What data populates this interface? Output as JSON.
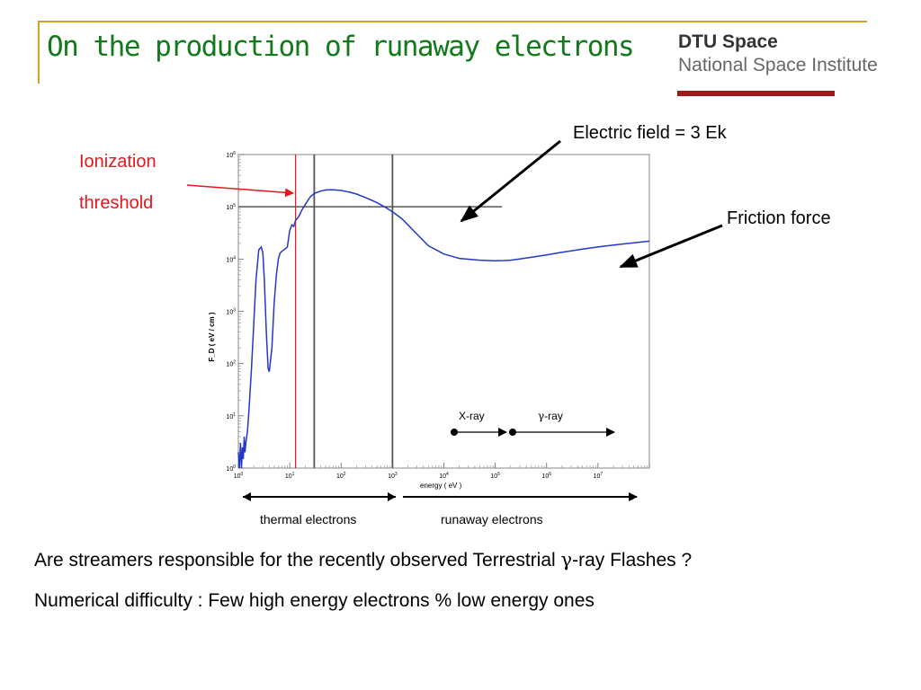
{
  "slide": {
    "title": "On the production of runaway electrons",
    "logo": {
      "line1": "DTU Space",
      "line2": "National Space Institute"
    },
    "annotations": {
      "ionization_line1": "Ionization",
      "ionization_line2": "threshold",
      "electric_field": "Electric field = 3 Ek",
      "friction_force": "Friction force",
      "xray": "X-ray",
      "gamma_symbol": "γ",
      "gamma_suffix": "-ray",
      "thermal": "thermal electrons",
      "runaway": "runaway electrons"
    },
    "question_prefix": "Are streamers responsible for the recently observed Terrestrial ",
    "question_symbol": "γ",
    "question_suffix": "-ray Flashes ?",
    "note": "Numerical difficulty : Few high energy electrons % low energy ones"
  },
  "colors": {
    "title": "#137a1b",
    "curve": "#2438c8",
    "ionization": "#e8161c",
    "logo_bar": "#9e1a1a",
    "frame_line": "#cfa22b"
  },
  "chart_data": {
    "type": "line",
    "xlabel": "energy ( eV )",
    "ylabel": "F_D ( eV / cm )",
    "xscale": "log",
    "yscale": "log",
    "xlim": [
      1,
      100000000
    ],
    "ylim": [
      1,
      1000000
    ],
    "x_tick_labels": [
      "10^0",
      "10^1",
      "10^2",
      "10^3",
      "10^4",
      "10^5",
      "10^6",
      "10^7"
    ],
    "y_tick_labels": [
      "10^0",
      "10^1",
      "10^2",
      "10^3",
      "10^4",
      "10^5",
      "10^6"
    ],
    "series": [
      {
        "x": [
          1,
          1.05,
          1.1,
          1.15,
          1.2,
          1.25,
          1.3,
          1.35,
          1.4,
          1.5,
          1.6,
          1.8,
          2.0,
          2.2,
          2.5,
          2.8,
          3.0,
          3.2,
          3.5,
          3.8,
          4.0,
          4.5,
          5.0,
          5.5,
          6.0,
          6.5,
          7.0,
          8.0,
          9.0,
          10,
          11,
          12,
          13,
          15,
          17,
          20,
          25,
          30,
          40,
          50,
          70,
          100,
          150,
          200,
          300,
          500,
          700,
          1000,
          1500,
          2000,
          3000,
          5000,
          10000,
          20000,
          50000,
          100000,
          150000,
          200000,
          300000,
          500000,
          1000000,
          2000000,
          5000000,
          10000000,
          20000000,
          100000000
        ],
        "y": [
          2,
          1,
          3,
          1,
          2.5,
          1.5,
          4,
          2,
          3,
          5,
          12,
          80,
          600,
          4000,
          15000,
          17000,
          13000,
          4000,
          400,
          80,
          70,
          200,
          1500,
          5000,
          10000,
          13000,
          14000,
          15500,
          17000,
          35000,
          45000,
          42000,
          55000,
          65000,
          85000,
          110000,
          155000,
          180000,
          200000,
          210000,
          212000,
          205000,
          190000,
          175000,
          150000,
          120000,
          100000,
          80000,
          60000,
          45000,
          30000,
          18000,
          12500,
          10300,
          9500,
          9300,
          9350,
          9500,
          10000,
          10800,
          12000,
          13500,
          15500,
          17000,
          18500,
          22000
        ]
      }
    ],
    "electric_field_level": 100000,
    "vertical_markers": [
      13,
      30,
      1000
    ],
    "ionization_threshold": 13
  }
}
